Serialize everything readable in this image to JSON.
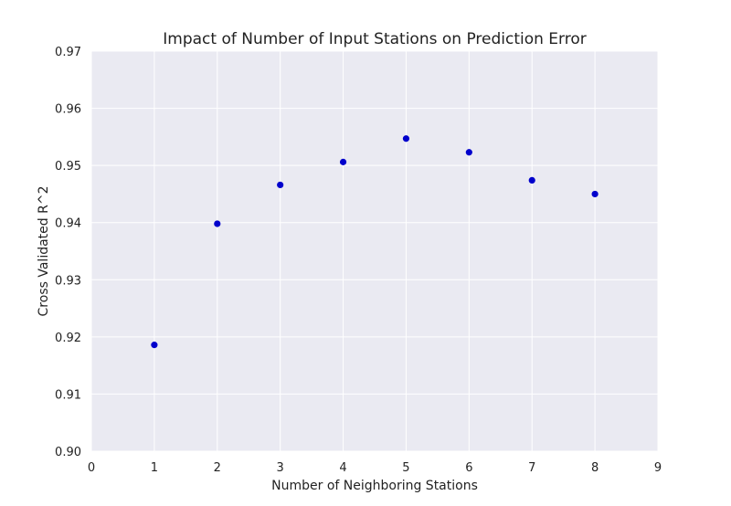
{
  "chart_data": {
    "type": "scatter",
    "title": "Impact of Number of Input Stations on Prediction Error",
    "xlabel": "Number of Neighboring Stations",
    "ylabel": "Cross Validated R^2",
    "xlim": [
      0,
      9
    ],
    "ylim": [
      0.9,
      0.97
    ],
    "xticks": [
      "0",
      "1",
      "2",
      "3",
      "4",
      "5",
      "6",
      "7",
      "8",
      "9"
    ],
    "yticks": [
      "0.90",
      "0.91",
      "0.92",
      "0.93",
      "0.94",
      "0.95",
      "0.96",
      "0.97"
    ],
    "grid": true,
    "x": [
      1,
      2,
      3,
      4,
      5,
      6,
      7,
      8
    ],
    "y": [
      0.9186,
      0.9398,
      0.9466,
      0.9506,
      0.9547,
      0.9523,
      0.9474,
      0.945
    ],
    "colors": {
      "plot_background": "#eaeaf2",
      "grid": "#ffffff",
      "marker": "#0000cc"
    }
  }
}
